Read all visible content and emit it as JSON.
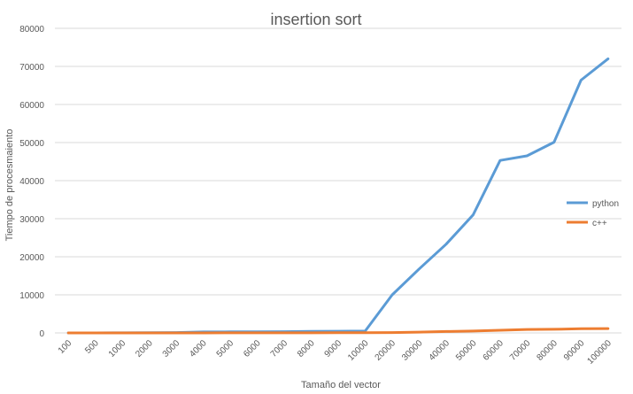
{
  "chart_data": {
    "type": "line",
    "title": "insertion sort",
    "xlabel": "Tamaño del vector",
    "ylabel": "Tiempo de procesmaiento",
    "categories": [
      "100",
      "500",
      "1000",
      "2000",
      "3000",
      "4000",
      "5000",
      "6000",
      "7000",
      "8000",
      "9000",
      "10000",
      "20000",
      "30000",
      "40000",
      "50000",
      "60000",
      "70000",
      "80000",
      "90000",
      "100000"
    ],
    "series": [
      {
        "name": "python",
        "color": "#5b9bd5",
        "values": [
          0,
          10,
          20,
          50,
          100,
          250,
          280,
          300,
          320,
          420,
          450,
          480,
          10000,
          16800,
          23300,
          31000,
          45300,
          46500,
          50100,
          66400,
          72000
        ]
      },
      {
        "name": "c++",
        "color": "#ed7d31",
        "values": [
          0,
          0,
          0,
          0,
          5,
          10,
          15,
          20,
          25,
          30,
          35,
          40,
          90,
          200,
          380,
          500,
          700,
          900,
          950,
          1100,
          1150
        ]
      }
    ],
    "ylim": [
      0,
      80000
    ],
    "yticks": [
      0,
      10000,
      20000,
      30000,
      40000,
      50000,
      60000,
      70000,
      80000
    ],
    "grid": true,
    "legend": "right"
  }
}
